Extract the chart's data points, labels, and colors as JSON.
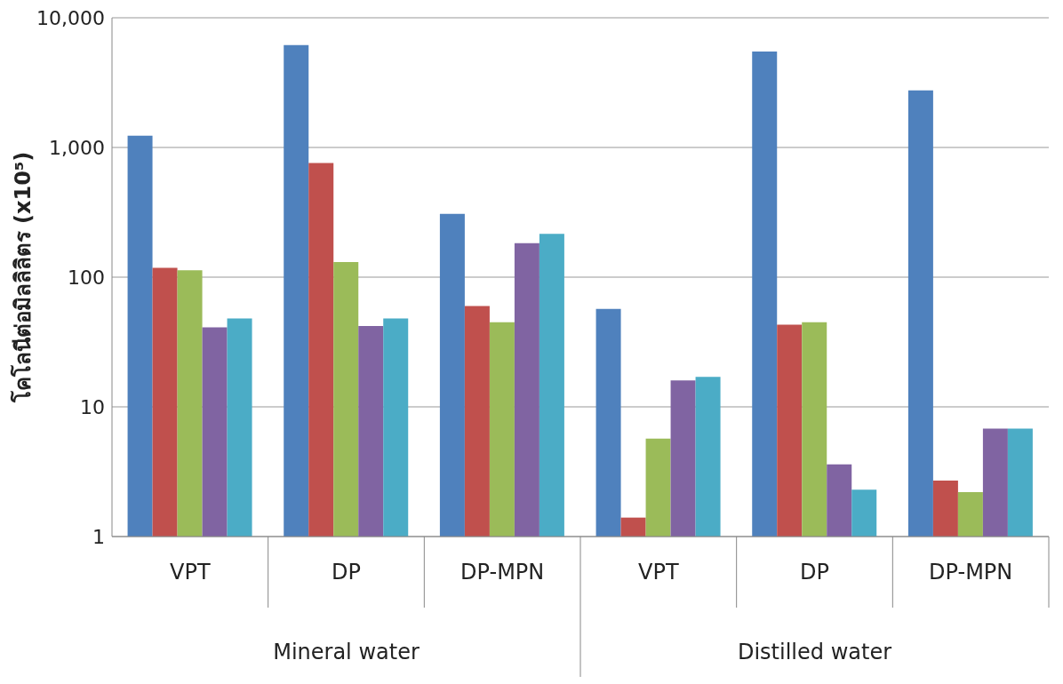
{
  "chart_data": {
    "type": "bar",
    "ylabel": "โคโลนีต่อมิลลิลิตร (x10⁵)",
    "log": "y",
    "grid": "y",
    "legend": false,
    "categories": [
      "VPT",
      "DP",
      "DP-MPN",
      "VPT",
      "DP",
      "DP-MPN"
    ],
    "ylim": [
      1,
      10000
    ],
    "yticks": [
      1,
      10,
      100,
      {
        "value": 1000,
        "label": "1,000"
      },
      {
        "value": 10000,
        "label": "10,000"
      }
    ],
    "series": [
      {
        "color": "#4f81bd",
        "values": [
          1230,
          6150,
          308,
          57,
          5500,
          2750
        ]
      },
      {
        "color": "#c0504d",
        "values": [
          118,
          760,
          60,
          1.4,
          43,
          2.7
        ]
      },
      {
        "color": "#9bbb59",
        "values": [
          113,
          131,
          45,
          5.7,
          45,
          2.2
        ]
      },
      {
        "color": "#8064a2",
        "values": [
          41,
          42,
          183,
          16,
          3.6,
          6.8
        ]
      },
      {
        "color": "#4bacc6",
        "values": [
          48,
          48,
          216,
          17,
          2.3,
          6.8
        ]
      }
    ],
    "annotations": [
      "Mineral water",
      "Distilled water"
    ]
  }
}
